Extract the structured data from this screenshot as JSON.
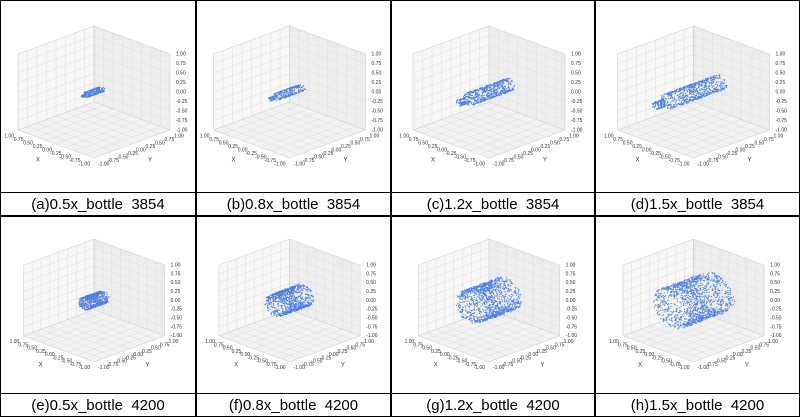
{
  "panels": [
    {
      "caption": "(a)0.5x_bottle  3854"
    },
    {
      "caption": "(b)0.8x_bottle  3854"
    },
    {
      "caption": "(c)1.2x_bottle  3854"
    },
    {
      "caption": "(d)1.5x_bottle  3854"
    },
    {
      "caption": "(e)0.5x_bottle  4200"
    },
    {
      "caption": "(f)0.8x_bottle  4200"
    },
    {
      "caption": "(g)1.2x_bottle  4200"
    },
    {
      "caption": "(h)1.5x_bottle  4200"
    }
  ],
  "axes": {
    "x_label": "X",
    "y_label": "Y",
    "x_ticks": [
      "1.00",
      "0.75",
      "0.50",
      "0.25",
      "0.00",
      "-0.25",
      "-0.50",
      "-0.75",
      "-1.00"
    ],
    "y_ticks": [
      "-1.00",
      "-0.75",
      "-0.50",
      "-0.25",
      "0.00",
      "0.25",
      "0.50",
      "0.75",
      "1.00"
    ],
    "z_ticks": [
      "1.00",
      "0.75",
      "0.50",
      "0.25",
      "0.00",
      "-0.25",
      "-0.50",
      "-0.75",
      "-1.00"
    ]
  }
}
